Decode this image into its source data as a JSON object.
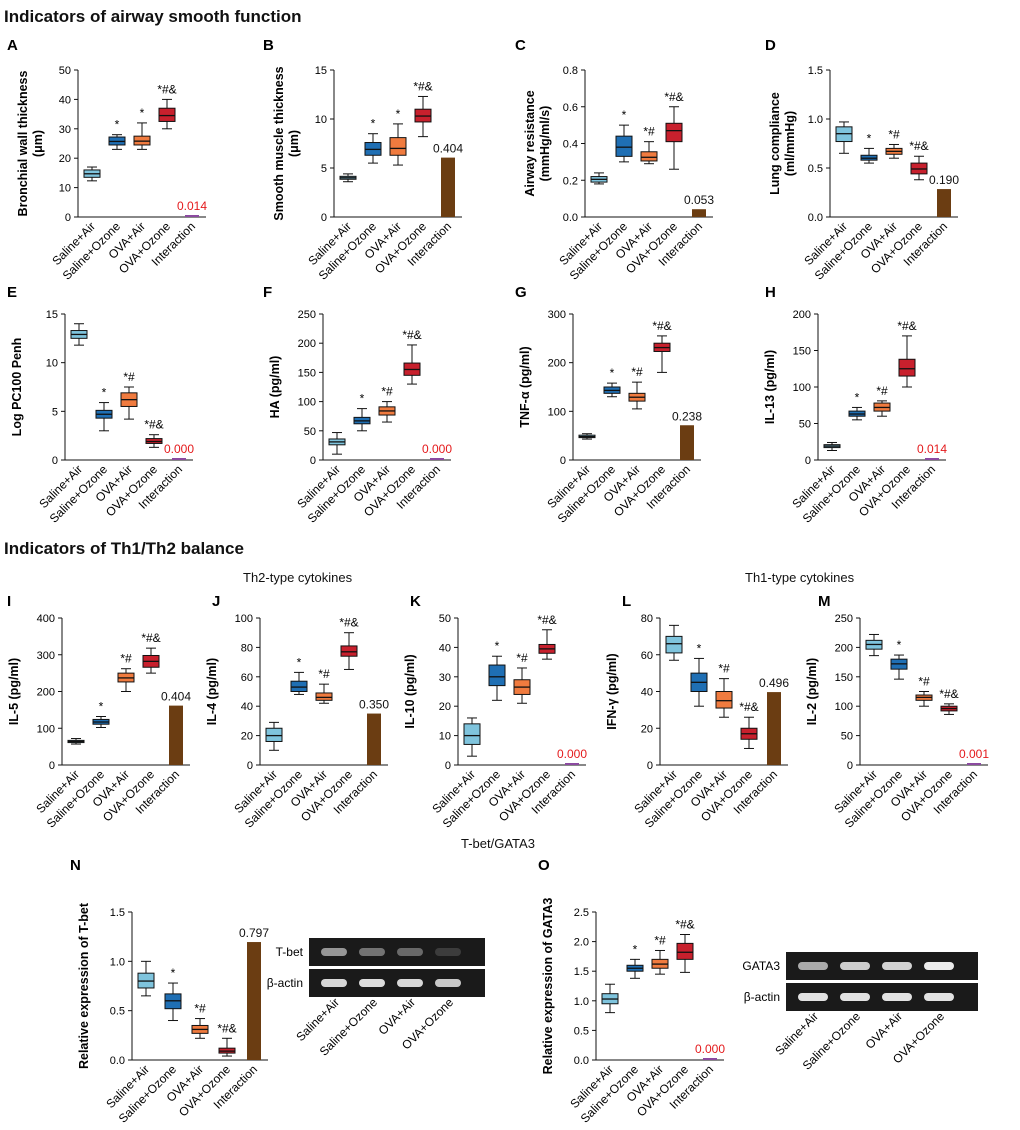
{
  "sections": {
    "airway": "Indicators of airway smooth function",
    "th": "Indicators of Th1/Th2 balance",
    "th2": "Th2-type cytokines",
    "th1": "Th1-type cytokines",
    "tbet": "T-bet/GATA3"
  },
  "groups": [
    "Saline+Air",
    "Saline+Ozone",
    "OVA+Air",
    "OVA+Ozone"
  ],
  "interaction_label": "Interaction",
  "colors": {
    "g1": "#7fc4dd",
    "g2": "#1f6fb4",
    "g3": "#f07b3f",
    "g4": "#c8202d",
    "bar": "#6b3d12",
    "sig_bar": "#8b4aa0",
    "sig_text": "#e41a1c"
  },
  "gel": {
    "tbet_rows": [
      "T-bet",
      "β-actin"
    ],
    "gata3_rows": [
      "GATA3",
      "β-actin"
    ]
  },
  "chart_data": [
    {
      "id": "A",
      "type": "box",
      "ylabel": [
        "Bronchial wall thickness",
        "(μm)"
      ],
      "ylim": [
        0,
        50
      ],
      "yticks": [
        0,
        10,
        20,
        30,
        40,
        50
      ],
      "boxes": [
        {
          "q1": 13.5,
          "med": 14.7,
          "q3": 16,
          "min": 12.3,
          "max": 17
        },
        {
          "q1": 24.5,
          "med": 25.7,
          "q3": 27.2,
          "min": 23,
          "max": 28
        },
        {
          "q1": 24.5,
          "med": 25.8,
          "q3": 27.5,
          "min": 23,
          "max": 32
        },
        {
          "q1": 32.5,
          "med": 34.5,
          "q3": 37,
          "min": 30,
          "max": 40
        }
      ],
      "marks": [
        "",
        "*",
        "*",
        "*#&"
      ],
      "interaction": {
        "value": 0.014,
        "label": "0.014",
        "sig": true
      }
    },
    {
      "id": "B",
      "type": "box",
      "ylabel": [
        "Smooth muscle thickness",
        "(μm)"
      ],
      "ylim": [
        0,
        15
      ],
      "yticks": [
        0,
        5,
        10,
        15
      ],
      "boxes": [
        {
          "q1": 3.85,
          "med": 4.0,
          "q3": 4.15,
          "min": 3.6,
          "max": 4.4
        },
        {
          "q1": 6.3,
          "med": 6.9,
          "q3": 7.6,
          "min": 5.5,
          "max": 8.5
        },
        {
          "q1": 6.3,
          "med": 7.0,
          "q3": 8.1,
          "min": 5.3,
          "max": 9.5
        },
        {
          "q1": 9.7,
          "med": 10.3,
          "q3": 11.0,
          "min": 8.2,
          "max": 12.3
        }
      ],
      "marks": [
        "",
        "*",
        "*",
        "*#&"
      ],
      "interaction": {
        "value": 0.404,
        "label": "0.404",
        "sig": false
      }
    },
    {
      "id": "C",
      "type": "box",
      "ylabel": [
        "Airway resistance",
        "(mmHg/ml/s)"
      ],
      "ylim": [
        0,
        0.8
      ],
      "yticks": [
        0,
        0.2,
        0.4,
        0.6,
        0.8
      ],
      "boxes": [
        {
          "q1": 0.19,
          "med": 0.205,
          "q3": 0.22,
          "min": 0.18,
          "max": 0.24
        },
        {
          "q1": 0.33,
          "med": 0.38,
          "q3": 0.44,
          "min": 0.3,
          "max": 0.5
        },
        {
          "q1": 0.305,
          "med": 0.325,
          "q3": 0.355,
          "min": 0.29,
          "max": 0.41
        },
        {
          "q1": 0.41,
          "med": 0.47,
          "q3": 0.51,
          "min": 0.26,
          "max": 0.6
        }
      ],
      "marks": [
        "",
        "*",
        "*#",
        "*#&"
      ],
      "interaction": {
        "value": 0.053,
        "label": "0.053",
        "sig": false
      }
    },
    {
      "id": "D",
      "type": "box",
      "ylabel": [
        "Lung compliance",
        "(ml/mmHg)"
      ],
      "ylim": [
        0,
        1.5
      ],
      "yticks": [
        0,
        0.5,
        1.0,
        1.5
      ],
      "boxes": [
        {
          "q1": 0.77,
          "med": 0.85,
          "q3": 0.92,
          "min": 0.65,
          "max": 0.97
        },
        {
          "q1": 0.58,
          "med": 0.6,
          "q3": 0.63,
          "min": 0.55,
          "max": 0.7
        },
        {
          "q1": 0.64,
          "med": 0.67,
          "q3": 0.7,
          "min": 0.6,
          "max": 0.74
        },
        {
          "q1": 0.44,
          "med": 0.49,
          "q3": 0.55,
          "min": 0.38,
          "max": 0.62
        }
      ],
      "marks": [
        "",
        "*",
        "*#",
        "*#&"
      ],
      "interaction": {
        "value": 0.19,
        "label": "0.190",
        "sig": false
      }
    },
    {
      "id": "E",
      "type": "box",
      "ylabel": [
        "Log PC100 Penh"
      ],
      "ylim": [
        0,
        15
      ],
      "yticks": [
        0,
        5,
        10,
        15
      ],
      "boxes": [
        {
          "q1": 12.5,
          "med": 12.9,
          "q3": 13.3,
          "min": 11.8,
          "max": 14
        },
        {
          "q1": 4.3,
          "med": 4.7,
          "q3": 5.1,
          "min": 3.0,
          "max": 5.9
        },
        {
          "q1": 5.5,
          "med": 6.2,
          "q3": 6.9,
          "min": 4.2,
          "max": 7.5
        },
        {
          "q1": 1.7,
          "med": 1.9,
          "q3": 2.2,
          "min": 1.3,
          "max": 2.6
        }
      ],
      "marks": [
        "",
        "*",
        "*#",
        "*#&"
      ],
      "interaction": {
        "value": 0.0,
        "label": "0.000",
        "sig": true
      }
    },
    {
      "id": "F",
      "type": "box",
      "ylabel": [
        "HA (pg/ml)"
      ],
      "ylim": [
        0,
        250
      ],
      "yticks": [
        0,
        50,
        100,
        150,
        200,
        250
      ],
      "boxes": [
        {
          "q1": 26,
          "med": 31,
          "q3": 36,
          "min": 10,
          "max": 47
        },
        {
          "q1": 62,
          "med": 67,
          "q3": 73,
          "min": 50,
          "max": 88
        },
        {
          "q1": 77,
          "med": 84,
          "q3": 91,
          "min": 65,
          "max": 100
        },
        {
          "q1": 145,
          "med": 155,
          "q3": 166,
          "min": 130,
          "max": 197
        }
      ],
      "marks": [
        "",
        "*",
        "*#",
        "*#&"
      ],
      "interaction": {
        "value": 0.0,
        "label": "0.000",
        "sig": true
      }
    },
    {
      "id": "G",
      "type": "box",
      "ylabel": [
        "TNF-α (pg/ml)"
      ],
      "ylim": [
        0,
        300
      ],
      "yticks": [
        0,
        100,
        200,
        300
      ],
      "boxes": [
        {
          "q1": 46,
          "med": 48,
          "q3": 51,
          "min": 43,
          "max": 54
        },
        {
          "q1": 137,
          "med": 143,
          "q3": 150,
          "min": 130,
          "max": 158
        },
        {
          "q1": 121,
          "med": 129,
          "q3": 137,
          "min": 105,
          "max": 160
        },
        {
          "q1": 223,
          "med": 231,
          "q3": 240,
          "min": 180,
          "max": 255
        }
      ],
      "marks": [
        "",
        "*",
        "*#",
        "*#&"
      ],
      "interaction": {
        "value": 0.238,
        "label": "0.238",
        "sig": false
      }
    },
    {
      "id": "H",
      "type": "box",
      "ylabel": [
        "IL-13 (pg/ml)"
      ],
      "ylim": [
        0,
        200
      ],
      "yticks": [
        0,
        50,
        100,
        150,
        200
      ],
      "boxes": [
        {
          "q1": 17,
          "med": 19,
          "q3": 21,
          "min": 13,
          "max": 24
        },
        {
          "q1": 60,
          "med": 63,
          "q3": 67,
          "min": 55,
          "max": 72
        },
        {
          "q1": 67,
          "med": 72,
          "q3": 78,
          "min": 60,
          "max": 81
        },
        {
          "q1": 115,
          "med": 125,
          "q3": 138,
          "min": 100,
          "max": 170
        }
      ],
      "marks": [
        "",
        "*",
        "*#",
        "*#&"
      ],
      "interaction": {
        "value": 0.014,
        "label": "0.014",
        "sig": true
      }
    },
    {
      "id": "I",
      "type": "box",
      "ylabel": [
        "IL-5 (pg/ml)"
      ],
      "ylim": [
        0,
        400
      ],
      "yticks": [
        0,
        100,
        200,
        300,
        400
      ],
      "boxes": [
        {
          "q1": 61,
          "med": 64,
          "q3": 67,
          "min": 57,
          "max": 72
        },
        {
          "q1": 111,
          "med": 117,
          "q3": 124,
          "min": 102,
          "max": 132
        },
        {
          "q1": 226,
          "med": 237,
          "q3": 250,
          "min": 200,
          "max": 262
        },
        {
          "q1": 266,
          "med": 282,
          "q3": 298,
          "min": 250,
          "max": 318
        }
      ],
      "marks": [
        "",
        "*",
        "*#",
        "*#&"
      ],
      "interaction": {
        "value": 0.404,
        "label": "0.404",
        "sig": false
      }
    },
    {
      "id": "J",
      "type": "box",
      "ylabel": [
        "IL-4 (pg/ml)"
      ],
      "ylim": [
        0,
        100
      ],
      "yticks": [
        0,
        20,
        40,
        60,
        80,
        100
      ],
      "boxes": [
        {
          "q1": 16,
          "med": 20,
          "q3": 25,
          "min": 10,
          "max": 29
        },
        {
          "q1": 50,
          "med": 53,
          "q3": 57,
          "min": 48,
          "max": 63
        },
        {
          "q1": 44,
          "med": 46,
          "q3": 49,
          "min": 42,
          "max": 55
        },
        {
          "q1": 74,
          "med": 77,
          "q3": 81,
          "min": 65,
          "max": 90
        }
      ],
      "marks": [
        "",
        "*",
        "*#",
        "*#&"
      ],
      "interaction": {
        "value": 0.35,
        "label": "0.350",
        "sig": false
      }
    },
    {
      "id": "K",
      "type": "box",
      "ylabel": [
        "IL-10 (pg/ml)"
      ],
      "ylim": [
        0,
        50
      ],
      "yticks": [
        0,
        10,
        20,
        30,
        40,
        50
      ],
      "boxes": [
        {
          "q1": 7,
          "med": 10,
          "q3": 14,
          "min": 3,
          "max": 16
        },
        {
          "q1": 27,
          "med": 30,
          "q3": 34,
          "min": 22,
          "max": 37
        },
        {
          "q1": 24,
          "med": 26.5,
          "q3": 29,
          "min": 21,
          "max": 33
        },
        {
          "q1": 38,
          "med": 39.5,
          "q3": 41,
          "min": 36,
          "max": 46
        }
      ],
      "marks": [
        "",
        "*",
        "*#",
        "*#&"
      ],
      "interaction": {
        "value": 0.0,
        "label": "0.000",
        "sig": true
      }
    },
    {
      "id": "L",
      "type": "box",
      "ylabel": [
        "IFN-γ (pg/ml)"
      ],
      "ylim": [
        0,
        80
      ],
      "yticks": [
        0,
        20,
        40,
        60,
        80
      ],
      "boxes": [
        {
          "q1": 61,
          "med": 66,
          "q3": 70,
          "min": 57,
          "max": 76
        },
        {
          "q1": 40,
          "med": 45,
          "q3": 50,
          "min": 32,
          "max": 58
        },
        {
          "q1": 31,
          "med": 35,
          "q3": 40,
          "min": 26,
          "max": 47
        },
        {
          "q1": 14,
          "med": 17,
          "q3": 20,
          "min": 9,
          "max": 26
        }
      ],
      "marks": [
        "",
        "*",
        "*#",
        "*#&"
      ],
      "interaction": {
        "value": 0.496,
        "label": "0.496",
        "sig": false
      }
    },
    {
      "id": "M",
      "type": "box",
      "ylabel": [
        "IL-2 (pg/ml)"
      ],
      "ylim": [
        0,
        250
      ],
      "yticks": [
        0,
        50,
        100,
        150,
        200,
        250
      ],
      "boxes": [
        {
          "q1": 197,
          "med": 205,
          "q3": 212,
          "min": 186,
          "max": 222
        },
        {
          "q1": 163,
          "med": 172,
          "q3": 180,
          "min": 146,
          "max": 187
        },
        {
          "q1": 110,
          "med": 115,
          "q3": 119,
          "min": 100,
          "max": 125
        },
        {
          "q1": 92,
          "med": 96,
          "q3": 100,
          "min": 86,
          "max": 104
        }
      ],
      "marks": [
        "",
        "*",
        "*#",
        "*#&"
      ],
      "interaction": {
        "value": 0.001,
        "label": "0.001",
        "sig": true
      }
    },
    {
      "id": "N",
      "type": "box",
      "ylabel": [
        "Relative expression of T-bet"
      ],
      "ylim": [
        0,
        1.5
      ],
      "yticks": [
        0,
        0.5,
        1.0,
        1.5
      ],
      "boxes": [
        {
          "q1": 0.73,
          "med": 0.8,
          "q3": 0.88,
          "min": 0.65,
          "max": 1.0
        },
        {
          "q1": 0.52,
          "med": 0.6,
          "q3": 0.67,
          "min": 0.4,
          "max": 0.78
        },
        {
          "q1": 0.27,
          "med": 0.31,
          "q3": 0.35,
          "min": 0.22,
          "max": 0.42
        },
        {
          "q1": 0.07,
          "med": 0.09,
          "q3": 0.12,
          "min": 0.04,
          "max": 0.22
        }
      ],
      "marks": [
        "",
        "*",
        "*#",
        "*#&"
      ],
      "interaction": {
        "value": 0.797,
        "label": "0.797",
        "sig": false
      }
    },
    {
      "id": "O",
      "type": "box",
      "ylabel": [
        "Relative expression of GATA3"
      ],
      "ylim": [
        0,
        2.5
      ],
      "yticks": [
        0,
        0.5,
        1.0,
        1.5,
        2.0,
        2.5
      ],
      "boxes": [
        {
          "q1": 0.95,
          "med": 1.03,
          "q3": 1.12,
          "min": 0.8,
          "max": 1.28
        },
        {
          "q1": 1.5,
          "med": 1.55,
          "q3": 1.6,
          "min": 1.38,
          "max": 1.7
        },
        {
          "q1": 1.55,
          "med": 1.62,
          "q3": 1.7,
          "min": 1.45,
          "max": 1.85
        },
        {
          "q1": 1.7,
          "med": 1.82,
          "q3": 1.97,
          "min": 1.48,
          "max": 2.12
        }
      ],
      "marks": [
        "",
        "*",
        "*#",
        "*#&"
      ],
      "interaction": {
        "value": 0.0,
        "label": "0.000",
        "sig": true
      }
    }
  ]
}
